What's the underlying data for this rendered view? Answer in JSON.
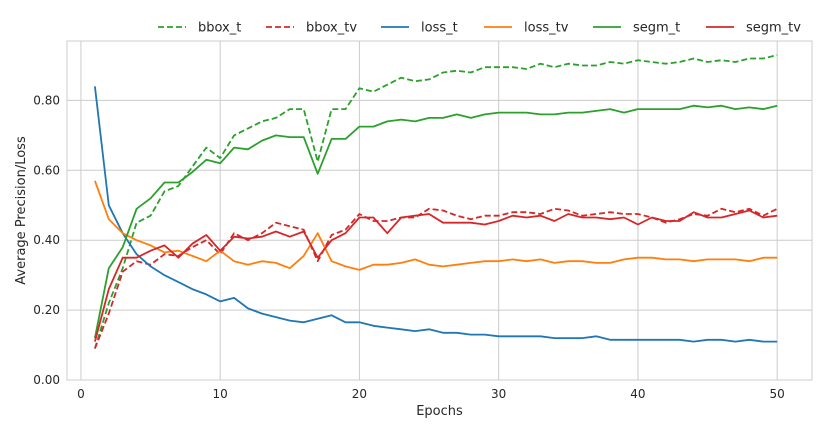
{
  "chart_data": {
    "type": "line",
    "title": "",
    "xlabel": "Epochs",
    "ylabel": "Average Precision/Loss",
    "xlim": [
      -1,
      52.5
    ],
    "ylim": [
      0.0,
      0.97
    ],
    "xticks": [
      0,
      10,
      20,
      30,
      40,
      50
    ],
    "yticks": [
      0.0,
      0.2,
      0.4,
      0.6,
      0.8
    ],
    "ytick_labels": [
      "0.00",
      "0.20",
      "0.40",
      "0.60",
      "0.80"
    ],
    "grid": true,
    "legend_position": "top",
    "x": [
      1,
      2,
      3,
      4,
      5,
      6,
      7,
      8,
      9,
      10,
      11,
      12,
      13,
      14,
      15,
      16,
      17,
      18,
      19,
      20,
      21,
      22,
      23,
      24,
      25,
      26,
      27,
      28,
      29,
      30,
      31,
      32,
      33,
      34,
      35,
      36,
      37,
      38,
      39,
      40,
      41,
      42,
      43,
      44,
      45,
      46,
      47,
      48,
      49,
      50
    ],
    "series": [
      {
        "name": "bbox_t",
        "color": "#2ca02c",
        "style": "dashed",
        "values": [
          0.09,
          0.22,
          0.32,
          0.45,
          0.47,
          0.54,
          0.555,
          0.61,
          0.665,
          0.635,
          0.7,
          0.72,
          0.74,
          0.75,
          0.775,
          0.775,
          0.625,
          0.775,
          0.775,
          0.835,
          0.825,
          0.845,
          0.865,
          0.855,
          0.86,
          0.88,
          0.885,
          0.88,
          0.895,
          0.895,
          0.895,
          0.89,
          0.905,
          0.895,
          0.905,
          0.9,
          0.9,
          0.91,
          0.905,
          0.915,
          0.91,
          0.905,
          0.91,
          0.92,
          0.91,
          0.915,
          0.91,
          0.92,
          0.92,
          0.93
        ]
      },
      {
        "name": "bbox_tv",
        "color": "#d62728",
        "style": "dashed",
        "values": [
          0.09,
          0.19,
          0.31,
          0.34,
          0.33,
          0.36,
          0.355,
          0.38,
          0.4,
          0.36,
          0.42,
          0.4,
          0.42,
          0.45,
          0.44,
          0.43,
          0.34,
          0.415,
          0.43,
          0.475,
          0.455,
          0.455,
          0.465,
          0.465,
          0.49,
          0.485,
          0.47,
          0.46,
          0.47,
          0.47,
          0.48,
          0.48,
          0.475,
          0.49,
          0.485,
          0.47,
          0.475,
          0.48,
          0.475,
          0.475,
          0.465,
          0.45,
          0.46,
          0.475,
          0.47,
          0.49,
          0.48,
          0.49,
          0.47,
          0.49
        ]
      },
      {
        "name": "loss_t",
        "color": "#1f77b4",
        "style": "solid",
        "values": [
          0.84,
          0.5,
          0.42,
          0.36,
          0.325,
          0.3,
          0.28,
          0.26,
          0.245,
          0.225,
          0.235,
          0.205,
          0.19,
          0.18,
          0.17,
          0.165,
          0.175,
          0.185,
          0.165,
          0.165,
          0.155,
          0.15,
          0.145,
          0.14,
          0.145,
          0.135,
          0.135,
          0.13,
          0.13,
          0.125,
          0.125,
          0.125,
          0.125,
          0.12,
          0.12,
          0.12,
          0.125,
          0.115,
          0.115,
          0.115,
          0.115,
          0.115,
          0.115,
          0.11,
          0.115,
          0.115,
          0.11,
          0.115,
          0.11,
          0.11
        ]
      },
      {
        "name": "loss_tv",
        "color": "#ff7f0e",
        "style": "solid",
        "values": [
          0.57,
          0.46,
          0.42,
          0.4,
          0.385,
          0.365,
          0.37,
          0.355,
          0.34,
          0.37,
          0.34,
          0.33,
          0.34,
          0.335,
          0.32,
          0.355,
          0.42,
          0.34,
          0.325,
          0.315,
          0.33,
          0.33,
          0.335,
          0.345,
          0.33,
          0.325,
          0.33,
          0.335,
          0.34,
          0.34,
          0.345,
          0.34,
          0.345,
          0.335,
          0.34,
          0.34,
          0.335,
          0.335,
          0.345,
          0.35,
          0.35,
          0.345,
          0.345,
          0.34,
          0.345,
          0.345,
          0.345,
          0.34,
          0.35,
          0.35
        ]
      },
      {
        "name": "segm_t",
        "color": "#2ca02c",
        "style": "solid",
        "values": [
          0.12,
          0.32,
          0.38,
          0.49,
          0.52,
          0.565,
          0.565,
          0.595,
          0.63,
          0.62,
          0.665,
          0.66,
          0.685,
          0.7,
          0.695,
          0.695,
          0.59,
          0.69,
          0.69,
          0.725,
          0.725,
          0.74,
          0.745,
          0.74,
          0.75,
          0.75,
          0.76,
          0.75,
          0.76,
          0.765,
          0.765,
          0.765,
          0.76,
          0.76,
          0.765,
          0.765,
          0.77,
          0.775,
          0.765,
          0.775,
          0.775,
          0.775,
          0.775,
          0.785,
          0.78,
          0.785,
          0.775,
          0.78,
          0.775,
          0.785
        ]
      },
      {
        "name": "segm_tv",
        "color": "#d62728",
        "style": "solid",
        "values": [
          0.11,
          0.26,
          0.35,
          0.35,
          0.37,
          0.385,
          0.35,
          0.39,
          0.415,
          0.37,
          0.41,
          0.405,
          0.41,
          0.425,
          0.41,
          0.425,
          0.35,
          0.4,
          0.42,
          0.465,
          0.465,
          0.42,
          0.465,
          0.47,
          0.475,
          0.45,
          0.45,
          0.45,
          0.445,
          0.455,
          0.47,
          0.465,
          0.47,
          0.455,
          0.475,
          0.465,
          0.465,
          0.46,
          0.465,
          0.445,
          0.465,
          0.455,
          0.455,
          0.48,
          0.465,
          0.465,
          0.475,
          0.485,
          0.465,
          0.47
        ]
      }
    ]
  }
}
